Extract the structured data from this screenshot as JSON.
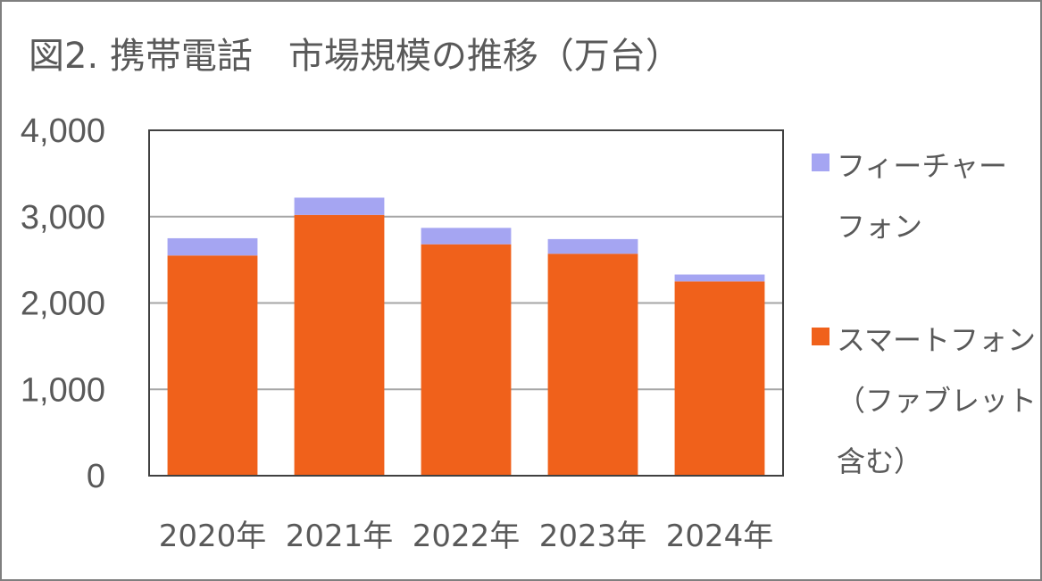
{
  "title": "図2. 携帯電話　市場規模の推移（万台）",
  "chart_data": {
    "type": "bar",
    "stacked": true,
    "categories": [
      "2020年",
      "2021年",
      "2022年",
      "2023年",
      "2024年"
    ],
    "series": [
      {
        "name": "スマートフォン（ファブレット含む）",
        "legend_lines": [
          "スマートフォン",
          "（ファブレット",
          "含む）"
        ],
        "color": "#f0611b",
        "values": [
          2550,
          3020,
          2680,
          2570,
          2250
        ]
      },
      {
        "name": "フィーチャーフォン",
        "legend_lines": [
          "フィーチャー",
          "フォン"
        ],
        "color": "#a5a5f2",
        "values": [
          200,
          200,
          190,
          170,
          80
        ]
      }
    ],
    "ylim": [
      0,
      4000
    ],
    "yticks": [
      0,
      1000,
      2000,
      3000,
      4000
    ],
    "ytick_labels": [
      "0",
      "1,000",
      "2,000",
      "3,000",
      "4,000"
    ],
    "grid": true,
    "legend_position": "right"
  }
}
